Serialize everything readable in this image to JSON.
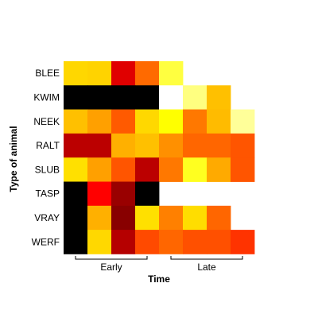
{
  "chart_data": {
    "type": "heatmap",
    "xlabel": "Time",
    "ylabel": "Type of animal",
    "rows": [
      "BLEE",
      "KWIM",
      "NEEK",
      "RALT",
      "SLUB",
      "TASP",
      "VRAY",
      "WERF"
    ],
    "n_columns": 8,
    "column_groups": [
      {
        "label": "Early",
        "from_column": 1,
        "to_column": 4
      },
      {
        "label": "Late",
        "from_column": 5,
        "to_column": 8
      }
    ],
    "cells": [
      [
        "#ffd700",
        "#ffd300",
        "#e00000",
        "#ff6a00",
        "#ffff40",
        null,
        null,
        null
      ],
      [
        "#000000",
        "#000000",
        "#000000",
        "#000000",
        "#ffffff",
        "#ffff80",
        "#ffc000",
        null
      ],
      [
        "#ffc000",
        "#ffa000",
        "#ff5a00",
        "#ffd800",
        "#ffff00",
        "#ff7800",
        "#ffbb00",
        "#ffff99"
      ],
      [
        "#bb0000",
        "#bb0000",
        "#ffb000",
        "#ffc000",
        "#ff9000",
        "#ff6600",
        "#ff6600",
        "#ff5500"
      ],
      [
        "#ffe000",
        "#ffa000",
        "#ff5500",
        "#bb0000",
        "#ff7800",
        "#ffff20",
        "#ffaa00",
        "#ff5500"
      ],
      [
        "#000000",
        "#ff0000",
        "#990000",
        "#000000",
        null,
        null,
        null,
        null
      ],
      [
        "#000000",
        "#ffb000",
        "#880000",
        "#ffe000",
        "#ff8000",
        "#ffdd00",
        "#ff6600",
        null
      ],
      [
        "#000000",
        "#ffd800",
        "#b50000",
        "#ff4a00",
        "#ff6600",
        "#ff5000",
        "#ff5000",
        "#ff3300"
      ]
    ]
  }
}
